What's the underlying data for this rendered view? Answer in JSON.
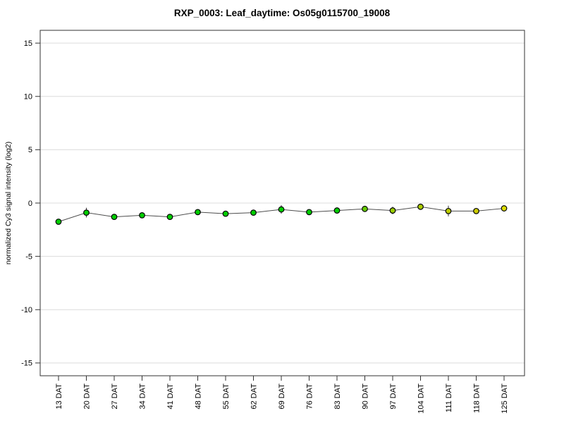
{
  "title": "RXP_0003: Leaf_daytime: Os05g0115700_19008",
  "chart_data": {
    "type": "line",
    "title": "RXP_0003: Leaf_daytime: Os05g0115700_19008",
    "xlabel": "",
    "ylabel": "normalized Cy3 signal intensity (log2)",
    "ylim": [
      -16.2,
      16.2
    ],
    "yticks": [
      15,
      10,
      5,
      0,
      -5,
      -10,
      -15
    ],
    "grid": true,
    "legend": "none",
    "categories": [
      "13 DAT",
      "20 DAT",
      "27 DAT",
      "34 DAT",
      "41 DAT",
      "48 DAT",
      "55 DAT",
      "62 DAT",
      "69 DAT",
      "76 DAT",
      "83 DAT",
      "90 DAT",
      "97 DAT",
      "104 DAT",
      "111 DAT",
      "118 DAT",
      "125 DAT"
    ],
    "series": [
      {
        "name": "normalized Cy3 signal intensity (log2)",
        "values": [
          -1.75,
          -0.9,
          -1.3,
          -1.15,
          -1.3,
          -0.85,
          -1.0,
          -0.9,
          -0.6,
          -0.85,
          -0.7,
          -0.55,
          -0.7,
          -0.35,
          -0.75,
          -0.75,
          -0.5
        ],
        "errors": [
          0.2,
          0.45,
          0.25,
          0.2,
          0.25,
          0.15,
          0.2,
          0.25,
          0.4,
          0.2,
          0.25,
          0.2,
          0.35,
          0.25,
          0.5,
          0.15,
          0.15
        ],
        "point_colors": [
          "#00CD00",
          "#00CD00",
          "#00CD00",
          "#00CD00",
          "#00CD00",
          "#00CD00",
          "#00CD00",
          "#00CD00",
          "#00CD00",
          "#00CD00",
          "#00CD00",
          "#66CC00",
          "#99CC00",
          "#AACC00",
          "#BBCC00",
          "#CCCC00",
          "#DCDC00"
        ]
      }
    ],
    "colors": {
      "line": "#4d4d4d",
      "point_outline": "#000000",
      "error_bar": "#333333",
      "grid": "#dcdcdc",
      "frame": "#333333",
      "background": "#ffffff"
    }
  }
}
